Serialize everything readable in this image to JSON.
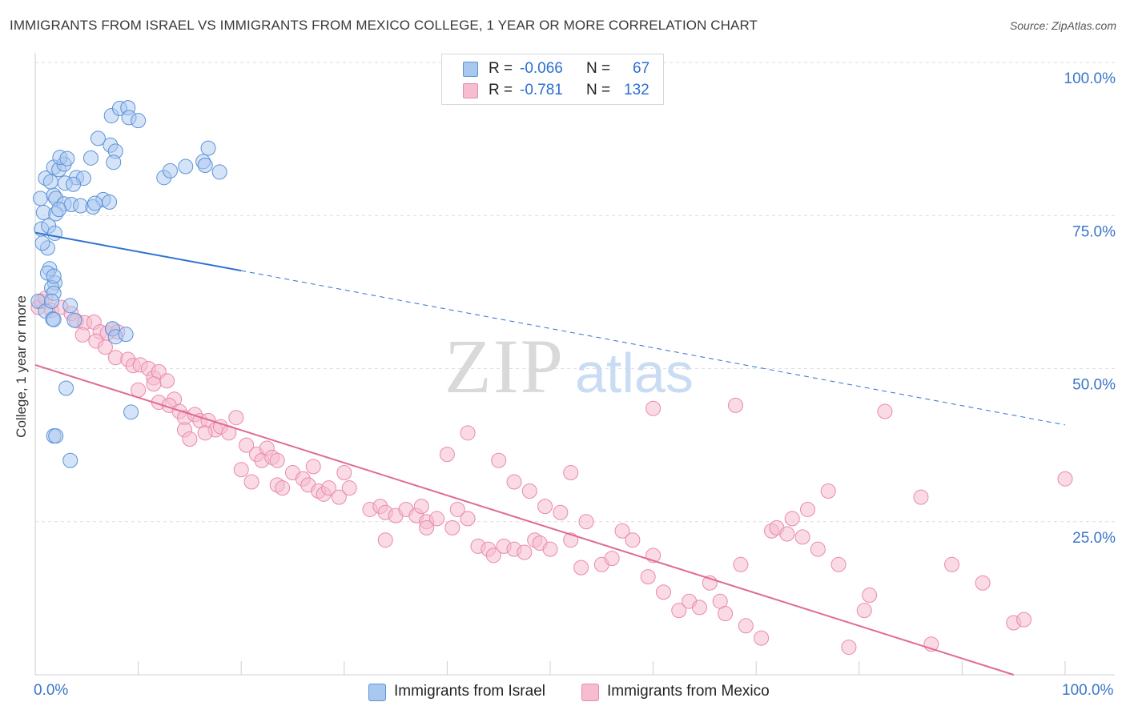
{
  "title": "IMMIGRANTS FROM ISRAEL VS IMMIGRANTS FROM MEXICO COLLEGE, 1 YEAR OR MORE CORRELATION CHART",
  "source": "Source: ZipAtlas.com",
  "watermark": {
    "zip": "ZIP",
    "atlas": "atlas"
  },
  "legend": {
    "rows": [
      {
        "r_label": "R =",
        "r_value": "-0.066",
        "n_label": "N =",
        "n_value": "67"
      },
      {
        "r_label": "R =",
        "r_value": "-0.781",
        "n_label": "N =",
        "n_value": "132"
      }
    ]
  },
  "colors": {
    "israel_fill": "#a9c8f0",
    "israel_stroke": "#5a93d8",
    "israel_line": "#2f72d0",
    "mexico_fill": "#f6bcd0",
    "mexico_stroke": "#e98aab",
    "mexico_line": "#e06a95",
    "tick_label": "#3a76c9",
    "grid": "#dddddd"
  },
  "chart_data": {
    "type": "scatter",
    "title": "IMMIGRANTS FROM ISRAEL VS IMMIGRANTS FROM MEXICO COLLEGE, 1 YEAR OR MORE CORRELATION CHART",
    "xlabel": "",
    "ylabel": "College, 1 year or more",
    "xlim": [
      0,
      100
    ],
    "ylim": [
      0,
      100
    ],
    "x_tick_labels": [
      "0.0%",
      "100.0%"
    ],
    "y_ticks": [
      25,
      50,
      75,
      100
    ],
    "y_tick_labels": [
      "25.0%",
      "50.0%",
      "75.0%",
      "100.0%"
    ],
    "grid": true,
    "series": [
      {
        "name": "Immigrants from Israel",
        "r": -0.066,
        "n": 67,
        "trend": {
          "start": [
            0,
            72.2
          ],
          "solid_end": [
            20,
            66.0
          ],
          "dashed_end": [
            100,
            40.8
          ]
        },
        "points": [
          [
            0.3,
            61
          ],
          [
            1.0,
            59.4
          ],
          [
            1.2,
            69.7
          ],
          [
            0.6,
            72.8
          ],
          [
            0.7,
            70.5
          ],
          [
            1.3,
            73.3
          ],
          [
            0.8,
            75.5
          ],
          [
            0.5,
            77.8
          ],
          [
            1.8,
            78.3
          ],
          [
            1.0,
            81.1
          ],
          [
            1.5,
            80.5
          ],
          [
            1.8,
            82.9
          ],
          [
            2.3,
            82.5
          ],
          [
            2.8,
            83.4
          ],
          [
            2.0,
            77.8
          ],
          [
            2.8,
            76.9
          ],
          [
            3.5,
            76.8
          ],
          [
            2.0,
            75.3
          ],
          [
            2.3,
            76.0
          ],
          [
            1.9,
            72.1
          ],
          [
            1.4,
            66.3
          ],
          [
            1.2,
            65.6
          ],
          [
            1.9,
            64.0
          ],
          [
            1.6,
            63.2
          ],
          [
            1.8,
            65.1
          ],
          [
            1.8,
            62.3
          ],
          [
            1.6,
            61.0
          ],
          [
            1.7,
            58.1
          ],
          [
            2.4,
            84.5
          ],
          [
            3.1,
            84.3
          ],
          [
            4.0,
            81.2
          ],
          [
            4.7,
            81.1
          ],
          [
            2.9,
            80.3
          ],
          [
            3.7,
            80.1
          ],
          [
            5.4,
            84.4
          ],
          [
            6.6,
            77.6
          ],
          [
            4.4,
            76.6
          ],
          [
            5.6,
            76.4
          ],
          [
            5.8,
            77.0
          ],
          [
            7.2,
            77.2
          ],
          [
            7.3,
            86.5
          ],
          [
            6.1,
            87.6
          ],
          [
            7.4,
            91.3
          ],
          [
            8.2,
            92.5
          ],
          [
            9.0,
            92.6
          ],
          [
            9.1,
            91.0
          ],
          [
            7.8,
            85.5
          ],
          [
            7.6,
            83.7
          ],
          [
            10.0,
            90.5
          ],
          [
            16.8,
            86.0
          ],
          [
            16.3,
            83.8
          ],
          [
            16.5,
            83.2
          ],
          [
            17.9,
            82.1
          ],
          [
            12.5,
            81.2
          ],
          [
            13.1,
            82.3
          ],
          [
            14.6,
            83.0
          ],
          [
            1.8,
            58.0
          ],
          [
            3.8,
            57.9
          ],
          [
            7.5,
            56.5
          ],
          [
            7.8,
            55.2
          ],
          [
            8.8,
            55.6
          ],
          [
            3.4,
            60.3
          ],
          [
            9.3,
            42.9
          ],
          [
            3.0,
            46.8
          ],
          [
            1.8,
            39.0
          ],
          [
            2.0,
            39.0
          ],
          [
            3.4,
            35.0
          ]
        ]
      },
      {
        "name": "Immigrants from Mexico",
        "r": -0.781,
        "n": 132,
        "trend": {
          "start": [
            0,
            50.6
          ],
          "end": [
            95,
            0
          ]
        },
        "points": [
          [
            0.3,
            60.0
          ],
          [
            0.6,
            61.0
          ],
          [
            1.0,
            61.5
          ],
          [
            1.6,
            59.5
          ],
          [
            2.5,
            60.0
          ],
          [
            3.5,
            59.0
          ],
          [
            4.0,
            57.8
          ],
          [
            4.8,
            57.5
          ],
          [
            5.7,
            57.6
          ],
          [
            6.3,
            56.0
          ],
          [
            7.0,
            55.8
          ],
          [
            7.5,
            56.5
          ],
          [
            8.0,
            56.0
          ],
          [
            4.6,
            55.5
          ],
          [
            5.9,
            54.5
          ],
          [
            6.8,
            53.5
          ],
          [
            7.8,
            51.8
          ],
          [
            9.0,
            51.5
          ],
          [
            9.5,
            50.5
          ],
          [
            10.2,
            50.6
          ],
          [
            11.0,
            50.0
          ],
          [
            11.5,
            48.5
          ],
          [
            12.0,
            49.5
          ],
          [
            12.8,
            48.0
          ],
          [
            10.0,
            46.5
          ],
          [
            11.5,
            47.5
          ],
          [
            12.0,
            44.5
          ],
          [
            13.5,
            45.0
          ],
          [
            13.0,
            44.0
          ],
          [
            14.0,
            43.0
          ],
          [
            14.5,
            42.0
          ],
          [
            15.5,
            42.5
          ],
          [
            16.0,
            41.5
          ],
          [
            16.8,
            41.5
          ],
          [
            17.5,
            40.0
          ],
          [
            18.0,
            40.5
          ],
          [
            18.8,
            39.5
          ],
          [
            19.5,
            42.0
          ],
          [
            14.5,
            40.0
          ],
          [
            15.0,
            38.5
          ],
          [
            16.5,
            39.5
          ],
          [
            20.5,
            37.5
          ],
          [
            21.5,
            36.0
          ],
          [
            22.0,
            35.0
          ],
          [
            22.5,
            37.0
          ],
          [
            23.0,
            35.5
          ],
          [
            23.5,
            35.0
          ],
          [
            20.0,
            33.5
          ],
          [
            21.0,
            31.5
          ],
          [
            23.5,
            31.0
          ],
          [
            24.0,
            30.5
          ],
          [
            25.0,
            33.0
          ],
          [
            26.0,
            32.0
          ],
          [
            26.5,
            31.0
          ],
          [
            27.5,
            30.0
          ],
          [
            28.0,
            29.5
          ],
          [
            28.5,
            30.5
          ],
          [
            29.5,
            29.0
          ],
          [
            30.5,
            30.5
          ],
          [
            30.0,
            33.0
          ],
          [
            27.0,
            34.0
          ],
          [
            32.5,
            27.0
          ],
          [
            33.5,
            27.5
          ],
          [
            34.0,
            26.5
          ],
          [
            35.0,
            26.0
          ],
          [
            36.0,
            27.0
          ],
          [
            37.0,
            26.0
          ],
          [
            37.5,
            27.5
          ],
          [
            38.0,
            25.0
          ],
          [
            39.0,
            25.5
          ],
          [
            40.5,
            24.0
          ],
          [
            41.0,
            27.0
          ],
          [
            42.0,
            25.5
          ],
          [
            43.0,
            21.0
          ],
          [
            44.0,
            20.5
          ],
          [
            44.5,
            19.5
          ],
          [
            45.5,
            21.0
          ],
          [
            46.5,
            20.5
          ],
          [
            47.5,
            20.0
          ],
          [
            48.5,
            22.0
          ],
          [
            49.0,
            21.5
          ],
          [
            50.0,
            20.5
          ],
          [
            51.0,
            26.5
          ],
          [
            52.0,
            22.0
          ],
          [
            34.0,
            22.0
          ],
          [
            38.0,
            24.0
          ],
          [
            40.0,
            36.0
          ],
          [
            42.0,
            39.5
          ],
          [
            45.0,
            35.0
          ],
          [
            46.5,
            31.5
          ],
          [
            48.0,
            30.0
          ],
          [
            49.5,
            27.5
          ],
          [
            52.0,
            33.0
          ],
          [
            53.5,
            25.0
          ],
          [
            53.0,
            17.5
          ],
          [
            55.0,
            18.0
          ],
          [
            56.0,
            19.0
          ],
          [
            57.0,
            23.5
          ],
          [
            58.0,
            22.0
          ],
          [
            59.5,
            16.0
          ],
          [
            60.0,
            19.5
          ],
          [
            61.0,
            13.5
          ],
          [
            62.5,
            10.5
          ],
          [
            63.5,
            12.0
          ],
          [
            64.5,
            11.0
          ],
          [
            65.5,
            15.0
          ],
          [
            66.5,
            12.0
          ],
          [
            67.0,
            10.0
          ],
          [
            68.5,
            18.0
          ],
          [
            69.0,
            8.0
          ],
          [
            70.5,
            6.0
          ],
          [
            71.5,
            23.5
          ],
          [
            72.0,
            24.0
          ],
          [
            73.0,
            23.0
          ],
          [
            73.5,
            25.5
          ],
          [
            74.5,
            22.5
          ],
          [
            75.0,
            27.0
          ],
          [
            76.0,
            20.5
          ],
          [
            77.0,
            30.0
          ],
          [
            78.0,
            18.0
          ],
          [
            80.5,
            10.5
          ],
          [
            81.0,
            13.0
          ],
          [
            82.5,
            43.0
          ],
          [
            86.0,
            29.0
          ],
          [
            87.0,
            5.0
          ],
          [
            89.0,
            18.0
          ],
          [
            92.0,
            15.0
          ],
          [
            95.0,
            8.5
          ],
          [
            96.0,
            9.0
          ],
          [
            100.0,
            32.0
          ],
          [
            60.0,
            43.5
          ],
          [
            68.0,
            44.0
          ],
          [
            79.0,
            4.5
          ]
        ]
      }
    ]
  },
  "bottom_legend": [
    "Immigrants from Israel",
    "Immigrants from Mexico"
  ]
}
